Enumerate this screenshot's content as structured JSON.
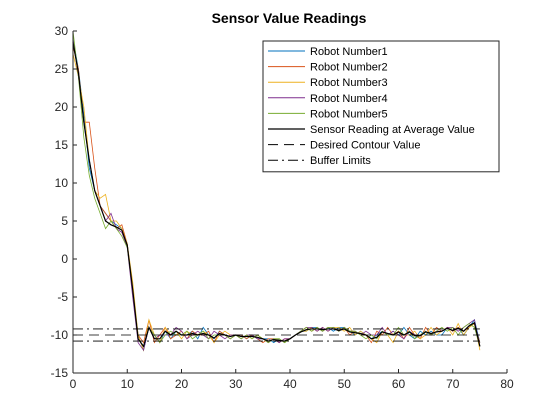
{
  "chart_data": {
    "type": "line",
    "title": "Sensor Value Readings",
    "xlabel": "",
    "ylabel": "",
    "xlim": [
      0,
      80
    ],
    "ylim": [
      -15,
      30
    ],
    "xticks": [
      0,
      10,
      20,
      30,
      40,
      50,
      60,
      70,
      80
    ],
    "yticks": [
      -15,
      -10,
      -5,
      0,
      5,
      10,
      15,
      20,
      25,
      30
    ],
    "grid": false,
    "legend_position": "top-right",
    "series": [
      {
        "name": "Robot Number1",
        "color": "#0072BD",
        "style": "solid",
        "x": [
          0,
          1,
          2,
          3,
          4,
          5,
          6,
          7,
          8,
          9,
          10,
          11,
          12,
          13,
          14,
          15,
          16,
          17,
          18,
          19,
          20,
          21,
          22,
          23,
          24,
          25,
          26,
          27,
          28,
          29,
          30,
          31,
          32,
          33,
          34,
          35,
          36,
          37,
          38,
          39,
          40,
          41,
          42,
          43,
          44,
          45,
          46,
          47,
          48,
          49,
          50,
          51,
          52,
          53,
          54,
          55,
          56,
          57,
          58,
          59,
          60,
          61,
          62,
          63,
          64,
          65,
          66,
          67,
          68,
          69,
          70,
          71,
          72,
          73,
          74,
          75
        ],
        "values": [
          29,
          25,
          19,
          12,
          9,
          7,
          6,
          5,
          4.5,
          4,
          2,
          -4,
          -10,
          -12,
          -9,
          -10,
          -11,
          -9.5,
          -10.5,
          -9.5,
          -10,
          -10,
          -9.5,
          -10.5,
          -9,
          -10,
          -10.5,
          -9.5,
          -10,
          -10.5,
          -10,
          -10,
          -10.5,
          -10,
          -10.5,
          -10.5,
          -10.5,
          -11,
          -10.5,
          -11,
          -10.5,
          -10,
          -9.5,
          -9.5,
          -9,
          -9,
          -9.5,
          -9,
          -9.5,
          -9,
          -9,
          -9.5,
          -10,
          -9.5,
          -10,
          -10.5,
          -10,
          -9.5,
          -10,
          -9.5,
          -10,
          -9,
          -10,
          -10.5,
          -9.5,
          -10,
          -9.5,
          -10,
          -10,
          -9,
          -9.5,
          -9,
          -10,
          -9,
          -8,
          -11
        ]
      },
      {
        "name": "Robot Number2",
        "color": "#D95319",
        "style": "solid",
        "x": [
          0,
          1,
          2,
          3,
          4,
          5,
          6,
          7,
          8,
          9,
          10,
          11,
          12,
          13,
          14,
          15,
          16,
          17,
          18,
          19,
          20,
          21,
          22,
          23,
          24,
          25,
          26,
          27,
          28,
          29,
          30,
          31,
          32,
          33,
          34,
          35,
          36,
          37,
          38,
          39,
          40,
          41,
          42,
          43,
          44,
          45,
          46,
          47,
          48,
          49,
          50,
          51,
          52,
          53,
          54,
          55,
          56,
          57,
          58,
          59,
          60,
          61,
          62,
          63,
          64,
          65,
          66,
          67,
          68,
          69,
          70,
          71,
          72,
          73,
          74,
          75
        ],
        "values": [
          28,
          25,
          18,
          18,
          12,
          7,
          6,
          5,
          4,
          4.5,
          2,
          -4,
          -10,
          -11,
          -8,
          -11,
          -10,
          -9,
          -10.5,
          -10,
          -9.5,
          -10.5,
          -9.5,
          -10,
          -10,
          -9.5,
          -11,
          -9.5,
          -10,
          -10.5,
          -10,
          -10,
          -10.5,
          -10,
          -10.5,
          -11,
          -10.5,
          -10.5,
          -11,
          -10.5,
          -10.5,
          -10,
          -9.5,
          -9,
          -9.5,
          -9,
          -9.5,
          -9,
          -9,
          -9.5,
          -9,
          -10,
          -9.5,
          -10,
          -10,
          -11,
          -9.5,
          -10,
          -9,
          -10,
          -9.5,
          -10.5,
          -9,
          -10,
          -10.5,
          -9,
          -10,
          -9,
          -9.5,
          -9,
          -9.5,
          -9,
          -9.5,
          -9,
          -8.5,
          -11
        ]
      },
      {
        "name": "Robot Number3",
        "color": "#EDB120",
        "style": "solid",
        "x": [
          0,
          1,
          2,
          3,
          4,
          5,
          6,
          7,
          8,
          9,
          10,
          11,
          12,
          13,
          14,
          15,
          16,
          17,
          18,
          19,
          20,
          21,
          22,
          23,
          24,
          25,
          26,
          27,
          28,
          29,
          30,
          31,
          32,
          33,
          34,
          35,
          36,
          37,
          38,
          39,
          40,
          41,
          42,
          43,
          44,
          45,
          46,
          47,
          48,
          49,
          50,
          51,
          52,
          53,
          54,
          55,
          56,
          57,
          58,
          59,
          60,
          61,
          62,
          63,
          64,
          65,
          66,
          67,
          68,
          69,
          70,
          71,
          72,
          73,
          74,
          75
        ],
        "values": [
          27,
          24,
          20,
          13,
          9,
          8,
          8.5,
          5,
          5,
          4,
          2,
          -3,
          -10,
          -12,
          -8,
          -10,
          -11,
          -9,
          -10,
          -9.5,
          -10.5,
          -9.5,
          -10,
          -10,
          -9.5,
          -10,
          -11,
          -10,
          -9.5,
          -10,
          -10,
          -10.5,
          -10,
          -10.5,
          -10,
          -10.5,
          -11,
          -10.5,
          -10.5,
          -11,
          -10.5,
          -10,
          -9.5,
          -9.5,
          -9,
          -9.5,
          -9,
          -9.5,
          -9,
          -9,
          -9.5,
          -9,
          -10,
          -9.5,
          -10,
          -10.5,
          -11,
          -9.5,
          -10,
          -11,
          -9.5,
          -10,
          -10,
          -9.5,
          -10.5,
          -10,
          -9,
          -10,
          -9.5,
          -9,
          -10,
          -8.5,
          -10,
          -9,
          -8.5,
          -12
        ]
      },
      {
        "name": "Robot Number4",
        "color": "#7E2F8E",
        "style": "solid",
        "x": [
          0,
          1,
          2,
          3,
          4,
          5,
          6,
          7,
          8,
          9,
          10,
          11,
          12,
          13,
          14,
          15,
          16,
          17,
          18,
          19,
          20,
          21,
          22,
          23,
          24,
          25,
          26,
          27,
          28,
          29,
          30,
          31,
          32,
          33,
          34,
          35,
          36,
          37,
          38,
          39,
          40,
          41,
          42,
          43,
          44,
          45,
          46,
          47,
          48,
          49,
          50,
          51,
          52,
          53,
          54,
          55,
          56,
          57,
          58,
          59,
          60,
          61,
          62,
          63,
          64,
          65,
          66,
          67,
          68,
          69,
          70,
          71,
          72,
          73,
          74,
          75
        ],
        "values": [
          29,
          24,
          18,
          13,
          9,
          7,
          5,
          6,
          4,
          3.5,
          1.5,
          -5,
          -11,
          -12,
          -9,
          -10.5,
          -10,
          -10,
          -10,
          -9,
          -9.5,
          -10.5,
          -10,
          -9.5,
          -10,
          -10.5,
          -9.5,
          -10,
          -10.5,
          -10,
          -10,
          -10.5,
          -10,
          -10,
          -10.5,
          -10.5,
          -11,
          -10.5,
          -11,
          -10.5,
          -10.5,
          -10,
          -9.5,
          -9,
          -9,
          -9.5,
          -9,
          -9.5,
          -9,
          -9.5,
          -9,
          -9.5,
          -9.5,
          -10,
          -9.5,
          -10,
          -10,
          -9,
          -10,
          -9.5,
          -10,
          -10.5,
          -9.5,
          -10,
          -10,
          -9.5,
          -10,
          -9.5,
          -9.5,
          -9,
          -9,
          -9.5,
          -9,
          -8.5,
          -8,
          -11.5
        ]
      },
      {
        "name": "Robot Number5",
        "color": "#77AC30",
        "style": "solid",
        "x": [
          0,
          1,
          2,
          3,
          4,
          5,
          6,
          7,
          8,
          9,
          10,
          11,
          12,
          13,
          14,
          15,
          16,
          17,
          18,
          19,
          20,
          21,
          22,
          23,
          24,
          25,
          26,
          27,
          28,
          29,
          30,
          31,
          32,
          33,
          34,
          35,
          36,
          37,
          38,
          39,
          40,
          41,
          42,
          43,
          44,
          45,
          46,
          47,
          48,
          49,
          50,
          51,
          52,
          53,
          54,
          55,
          56,
          57,
          58,
          59,
          60,
          61,
          62,
          63,
          64,
          65,
          66,
          67,
          68,
          69,
          70,
          71,
          72,
          73,
          74,
          75
        ],
        "values": [
          30,
          24,
          16,
          11,
          8,
          6,
          4,
          5,
          4,
          3,
          1.5,
          -4,
          -10.5,
          -11.5,
          -9,
          -10,
          -11,
          -10,
          -9.5,
          -10,
          -10,
          -9.5,
          -10.5,
          -10,
          -9.5,
          -10.5,
          -10,
          -10,
          -10,
          -10.5,
          -10,
          -10.5,
          -10,
          -10.5,
          -10,
          -10.5,
          -11,
          -10.5,
          -10.5,
          -11,
          -10.5,
          -10,
          -9.5,
          -9,
          -9.5,
          -9,
          -9.5,
          -9,
          -9,
          -9.5,
          -9,
          -9.5,
          -9.5,
          -10,
          -10.5,
          -10,
          -10.5,
          -9.5,
          -10,
          -10,
          -9,
          -10,
          -9.5,
          -10.5,
          -10,
          -9.5,
          -10,
          -9.5,
          -9,
          -9.5,
          -9,
          -10,
          -9,
          -8.5,
          -9,
          -11.5
        ]
      },
      {
        "name": "Sensor Reading at Average Value",
        "color": "#000000",
        "style": "solid",
        "x": [
          0,
          1,
          2,
          3,
          4,
          5,
          6,
          7,
          8,
          9,
          10,
          11,
          12,
          13,
          14,
          15,
          16,
          17,
          18,
          19,
          20,
          21,
          22,
          23,
          24,
          25,
          26,
          27,
          28,
          29,
          30,
          31,
          32,
          33,
          34,
          35,
          36,
          37,
          38,
          39,
          40,
          41,
          42,
          43,
          44,
          45,
          46,
          47,
          48,
          49,
          50,
          51,
          52,
          53,
          54,
          55,
          56,
          57,
          58,
          59,
          60,
          61,
          62,
          63,
          64,
          65,
          66,
          67,
          68,
          69,
          70,
          71,
          72,
          73,
          74,
          75
        ],
        "values": [
          28.5,
          24.5,
          18,
          13,
          9,
          7,
          5,
          4.5,
          4.2,
          3.8,
          1.8,
          -4,
          -10.5,
          -11.5,
          -9,
          -10.5,
          -10.5,
          -9.5,
          -10,
          -9.5,
          -10,
          -10,
          -9.8,
          -10,
          -9.8,
          -10,
          -10.4,
          -9.8,
          -10,
          -10.2,
          -10,
          -10.2,
          -10.2,
          -10.2,
          -10.3,
          -10.5,
          -10.8,
          -10.6,
          -10.7,
          -10.8,
          -10.5,
          -10,
          -9.6,
          -9.3,
          -9.2,
          -9.2,
          -9.3,
          -9.2,
          -9.2,
          -9.4,
          -9.2,
          -9.6,
          -9.7,
          -9.8,
          -10,
          -10.5,
          -10.3,
          -9.6,
          -9.8,
          -10,
          -9.6,
          -10,
          -9.6,
          -10.1,
          -10.1,
          -9.6,
          -9.8,
          -9.6,
          -9.5,
          -9.1,
          -9.4,
          -9.1,
          -9.5,
          -8.8,
          -8.4,
          -11.5
        ]
      },
      {
        "name": "Desired Contour Value",
        "color": "#000000",
        "style": "dashed",
        "x": [
          0,
          75
        ],
        "values": [
          -10,
          -10
        ]
      },
      {
        "name": "Buffer Limits",
        "color": "#000000",
        "style": "dashdot",
        "x": [
          0,
          75
        ],
        "values": [
          -9.2,
          -9.2
        ]
      },
      {
        "name": "",
        "color": "#000000",
        "style": "dashdot",
        "x": [
          0,
          75
        ],
        "values": [
          -10.8,
          -10.8
        ]
      }
    ]
  }
}
